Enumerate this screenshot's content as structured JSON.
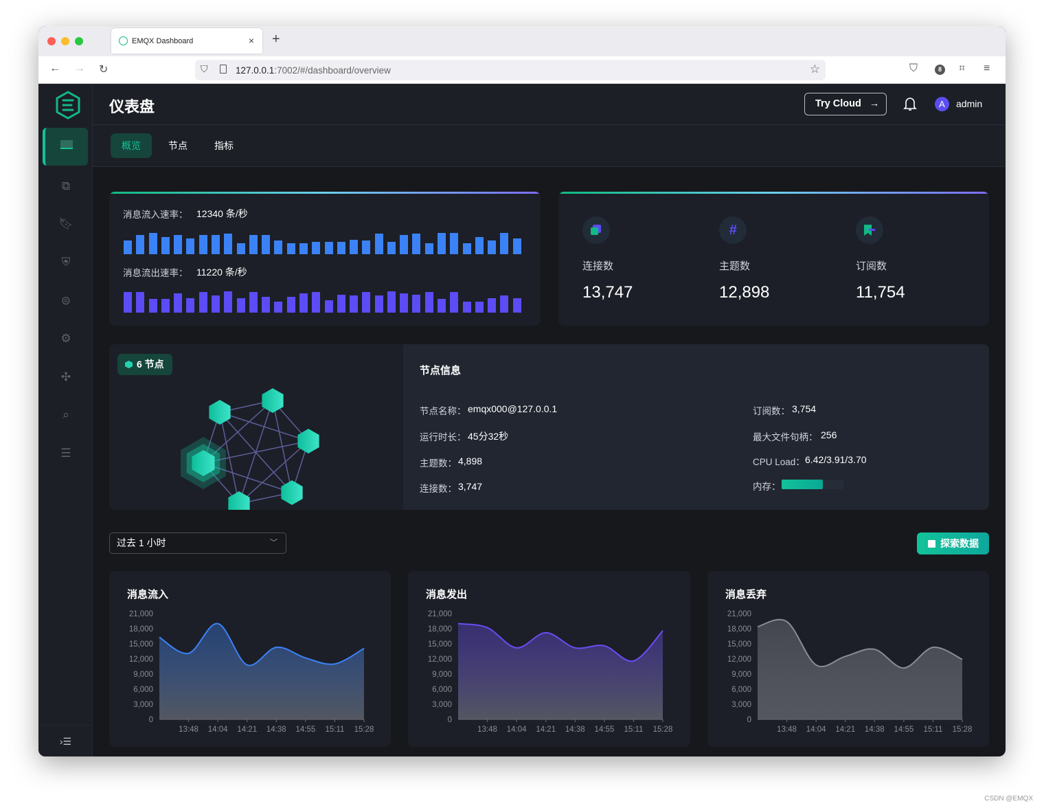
{
  "browser": {
    "tab_title": "EMQX Dashboard",
    "url_host": "127.0.0.1",
    "url_rest": ":7002/#/dashboard/overview",
    "badge_count": "8"
  },
  "header": {
    "title": "仪表盘",
    "try_cloud": "Try Cloud",
    "avatar_letter": "A",
    "username": "admin"
  },
  "tabs": [
    {
      "label": "概览",
      "active": true
    },
    {
      "label": "节点"
    },
    {
      "label": "指标"
    }
  ],
  "sidebar": {
    "items": [
      "dashboard",
      "connections",
      "subscriptions",
      "access-control",
      "integration",
      "management",
      "extensions",
      "diagnose",
      "system"
    ],
    "active": "dashboard"
  },
  "rates": {
    "in_label": "消息流入速率：",
    "in_value": "12340 条/秒",
    "in_color": "#3b82f6",
    "in_bars": [
      60,
      85,
      95,
      75,
      85,
      70,
      85,
      85,
      90,
      50,
      85,
      85,
      60,
      50,
      50,
      55,
      55,
      55,
      65,
      60,
      90,
      55,
      85,
      90,
      50,
      95,
      95,
      50,
      75,
      60,
      95,
      70
    ],
    "out_label": "消息流出速率：",
    "out_value": "11220 条/秒",
    "out_color": "#5b4cf5",
    "out_bars": [
      90,
      90,
      60,
      60,
      85,
      65,
      90,
      75,
      95,
      65,
      90,
      70,
      50,
      70,
      85,
      90,
      55,
      80,
      75,
      90,
      75,
      95,
      85,
      80,
      90,
      60,
      90,
      50,
      50,
      65,
      75,
      65
    ]
  },
  "stats": [
    {
      "icon": "connections-icon",
      "label": "连接数",
      "value": "13,747"
    },
    {
      "icon": "topics-icon",
      "label": "主题数",
      "value": "12,898"
    },
    {
      "icon": "subscriptions-icon",
      "label": "订阅数",
      "value": "11,754"
    }
  ],
  "nodes": {
    "badge": "6 节点",
    "count": 6
  },
  "node_info": {
    "title": "节点信息",
    "name_label": "节点名称：",
    "name": "emqx000@127.0.0.1",
    "uptime_label": "运行时长：",
    "uptime": "45分32秒",
    "topics_label": "主题数：",
    "topics": "4,898",
    "conns_label": "连接数：",
    "conns": "3,747",
    "subs_label": "订阅数：",
    "subs": "3,754",
    "fd_label": "最大文件句柄：",
    "fd": "256",
    "cpu_label": "CPU Load：",
    "cpu": "6.42/3.91/3.70",
    "mem_label": "内存：",
    "mem_percent": 67
  },
  "controls": {
    "range": "过去 1 小时",
    "explore": "探索数据"
  },
  "chart_data": [
    {
      "type": "area",
      "title": "消息流入",
      "color": "#3b82f6",
      "y_ticks": [
        "21,000",
        "18,000",
        "15,000",
        "12,000",
        "9,000",
        "6,000",
        "3,000",
        "0"
      ],
      "ylim": [
        0,
        21000
      ],
      "x_ticks": [
        "13:48",
        "14:04",
        "14:21",
        "14:38",
        "14:55",
        "15:11",
        "15:28"
      ],
      "values": [
        16300,
        13100,
        19000,
        10800,
        14300,
        12200,
        11000,
        14100
      ]
    },
    {
      "type": "area",
      "title": "消息发出",
      "color": "#6a4cf5",
      "y_ticks": [
        "21,000",
        "18,000",
        "15,000",
        "12,000",
        "9,000",
        "6,000",
        "3,000",
        "0"
      ],
      "ylim": [
        0,
        21000
      ],
      "x_ticks": [
        "13:48",
        "14:04",
        "14:21",
        "14:38",
        "14:55",
        "15:11",
        "15:28"
      ],
      "values": [
        19000,
        18200,
        14200,
        17200,
        14200,
        14600,
        11600,
        17600
      ]
    },
    {
      "type": "area",
      "title": "消息丢弃",
      "color": "#8a8d96",
      "y_ticks": [
        "21,000",
        "18,000",
        "15,000",
        "12,000",
        "9,000",
        "6,000",
        "3,000",
        "0"
      ],
      "ylim": [
        0,
        21000
      ],
      "x_ticks": [
        "13:48",
        "14:04",
        "14:21",
        "14:38",
        "14:55",
        "15:11",
        "15:28"
      ],
      "values": [
        18400,
        19400,
        10800,
        12500,
        13900,
        10200,
        14300,
        11900
      ]
    }
  ],
  "watermark": "CSDN @EMQX"
}
